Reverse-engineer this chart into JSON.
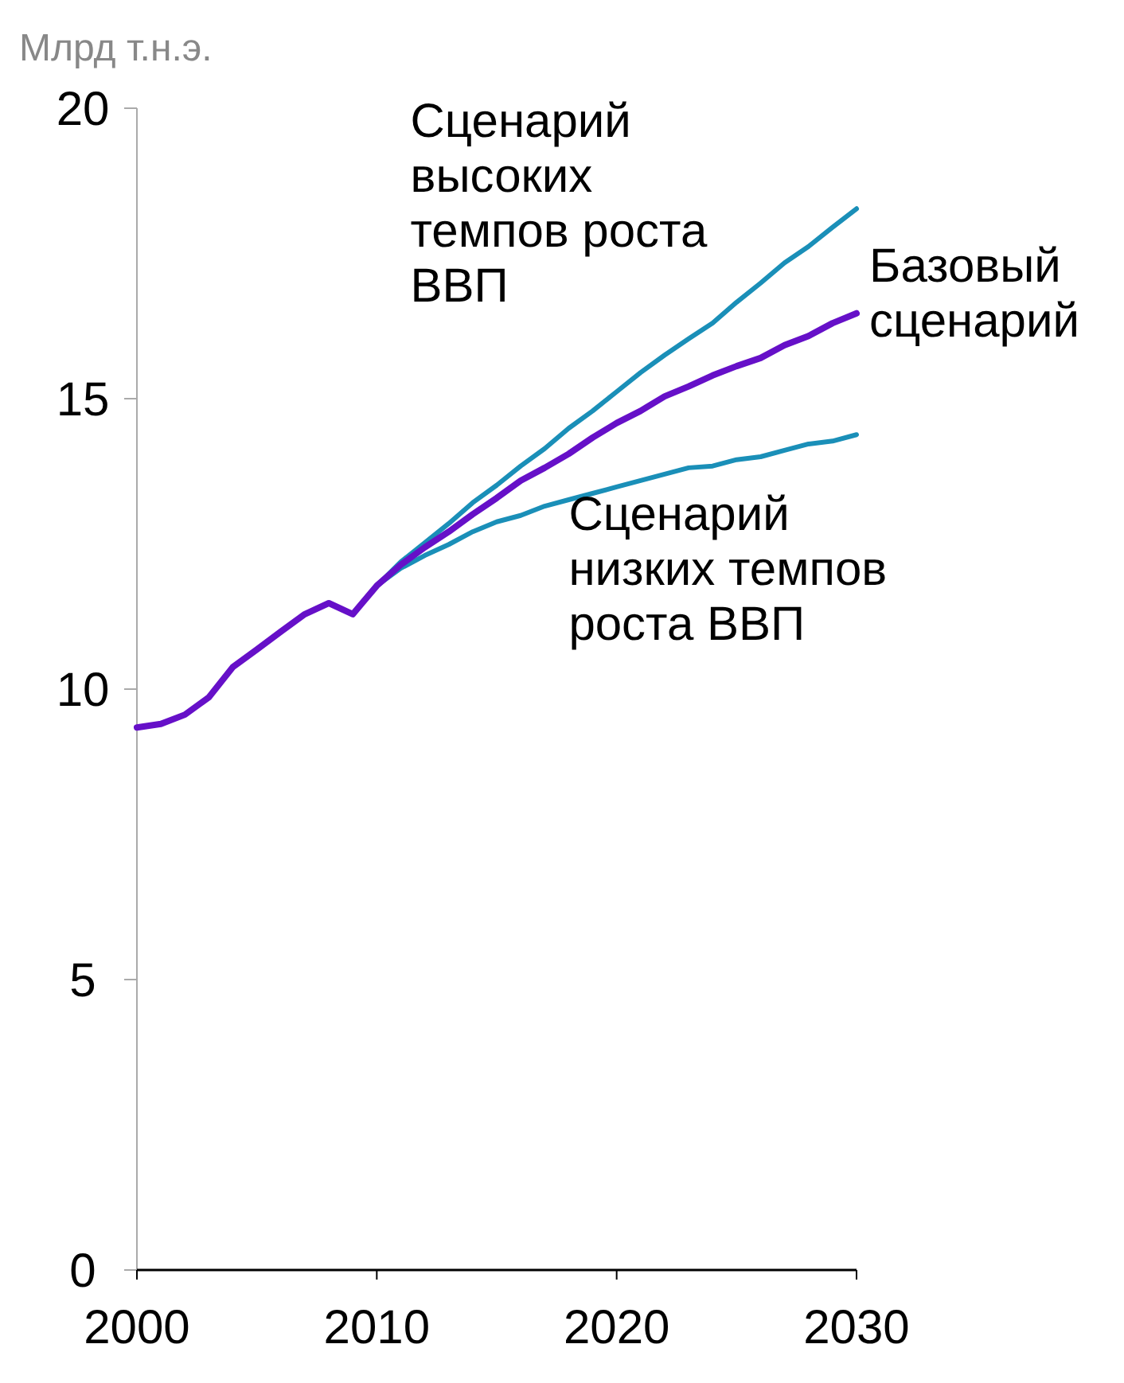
{
  "chart_data": {
    "type": "line",
    "ylabel": "Млрд т.н.э.",
    "x": [
      2000,
      2001,
      2002,
      2003,
      2004,
      2005,
      2006,
      2007,
      2008,
      2009,
      2010,
      2011,
      2012,
      2013,
      2014,
      2015,
      2016,
      2017,
      2018,
      2019,
      2020,
      2021,
      2022,
      2023,
      2024,
      2025,
      2026,
      2027,
      2028,
      2029,
      2030
    ],
    "series": [
      {
        "name": "Сценарий высоких темпов роста ВВП",
        "color": "#1a8fb8",
        "values": [
          null,
          null,
          null,
          null,
          null,
          null,
          null,
          null,
          null,
          11.29,
          11.78,
          12.19,
          12.52,
          12.85,
          13.21,
          13.51,
          13.84,
          14.14,
          14.49,
          14.79,
          15.12,
          15.45,
          15.75,
          16.03,
          16.3,
          16.66,
          16.99,
          17.34,
          17.62,
          17.95,
          18.27
        ]
      },
      {
        "name": "Сценарий низких темпов роста ВВП",
        "color": "#1a8fb8",
        "values": [
          null,
          null,
          null,
          null,
          null,
          null,
          null,
          null,
          null,
          11.29,
          11.78,
          12.08,
          12.3,
          12.49,
          12.71,
          12.88,
          12.99,
          13.15,
          13.26,
          13.37,
          13.48,
          13.59,
          13.7,
          13.81,
          13.84,
          13.95,
          14.0,
          14.11,
          14.22,
          14.27,
          14.38
        ]
      },
      {
        "name": "Базовый сценарий",
        "color": "#6610c8",
        "values": [
          9.34,
          9.4,
          9.56,
          9.86,
          10.38,
          10.68,
          10.99,
          11.29,
          11.48,
          11.29,
          11.78,
          12.14,
          12.44,
          12.71,
          13.01,
          13.29,
          13.59,
          13.81,
          14.05,
          14.33,
          14.58,
          14.79,
          15.04,
          15.21,
          15.4,
          15.56,
          15.7,
          15.92,
          16.08,
          16.3,
          16.47
        ]
      }
    ],
    "xlim": [
      2000,
      2030
    ],
    "xticks": [
      2000,
      2010,
      2020,
      2030
    ],
    "ylim": [
      0,
      20
    ],
    "yticks": [
      0,
      5,
      10,
      15,
      20
    ],
    "grid": false,
    "marker": "none",
    "line_style": "solid"
  }
}
